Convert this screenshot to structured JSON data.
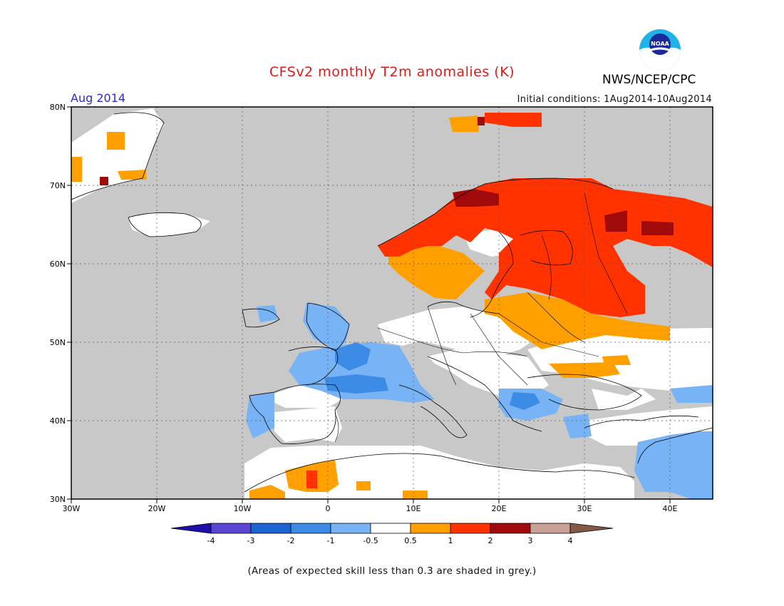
{
  "header": {
    "title": "CFSv2 monthly T2m anomalies (K)",
    "org": "NWS/NCEP/CPC",
    "month": "Aug 2014",
    "initial_conditions": "Initial conditions: 1Aug2014-10Aug2014",
    "logo_text": "NOAA"
  },
  "map": {
    "lon_labels": [
      "30W",
      "20W",
      "10W",
      "0",
      "10E",
      "20E",
      "30E",
      "40E"
    ],
    "lat_labels": [
      "80N",
      "70N",
      "60N",
      "50N",
      "40N",
      "30N"
    ],
    "lon_range": [
      -30,
      45
    ],
    "lat_range": [
      30,
      80
    ],
    "skill_mask_color": "#c8c8c8",
    "land_outline_color": "#000000"
  },
  "legend": {
    "breaks": [
      "-4",
      "-3",
      "-2",
      "-1",
      "-0.5",
      "0.5",
      "1",
      "2",
      "3",
      "4"
    ],
    "colors": [
      "#1e0fa8",
      "#5a46d2",
      "#1c64d2",
      "#3c8ce6",
      "#78b4f5",
      "#ffffff",
      "#ffa000",
      "#ff3200",
      "#a00a0a",
      "#c8a096",
      "#825a46"
    ]
  },
  "footnote": "(Areas of expected skill less than 0.3 are shaded in grey.)"
}
